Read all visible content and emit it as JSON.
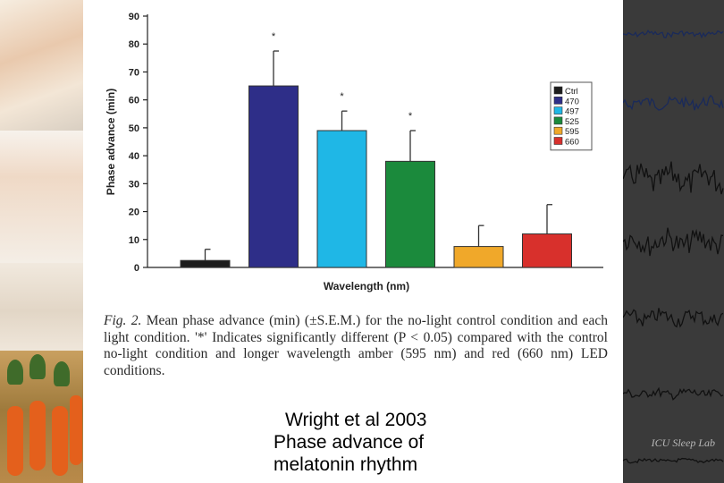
{
  "chart_data": {
    "type": "bar",
    "ylabel": "Phase advance (min)",
    "xlabel": "Wavelength (nm)",
    "ylim": [
      0,
      90
    ],
    "yticks": [
      0,
      10,
      20,
      30,
      40,
      50,
      60,
      70,
      80,
      90
    ],
    "legend_position": "top-right",
    "categories": [
      "Ctrl",
      "470",
      "497",
      "525",
      "595",
      "660"
    ],
    "values": [
      2.5,
      65,
      49,
      38,
      7.5,
      12
    ],
    "errors": [
      4,
      12.5,
      7,
      11,
      7.5,
      10.5
    ],
    "significance": [
      "",
      "*",
      "*",
      "*",
      "",
      ""
    ],
    "colors": [
      "#1c1c1c",
      "#2e2e88",
      "#1fb7e6",
      "#1b8a3c",
      "#f0a82a",
      "#d8302c"
    ]
  },
  "caption": {
    "fig_label": "Fig. 2.",
    "text": "Mean phase advance (min) (±S.E.M.) for the no-light control condition and each light condition. '*' Indicates significantly different (P < 0.05) compared with the control no-light condition and longer wavelength amber (595 nm) and red (660 nm) LED conditions."
  },
  "slide": {
    "line1": "Wright et al 2003",
    "line2": "Phase advance of",
    "line3": "melatonin rhythm"
  },
  "right_panel": {
    "watermark": "ICU Sleep Lab"
  }
}
